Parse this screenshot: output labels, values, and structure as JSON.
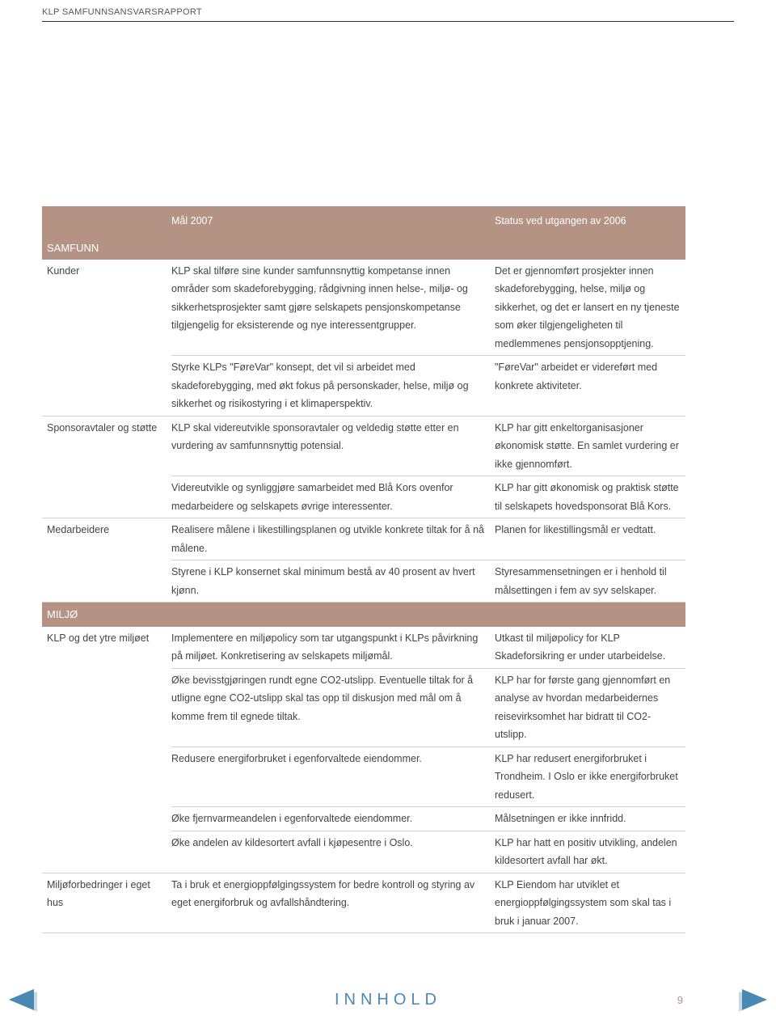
{
  "header": "KLP SAMFUNNSANSVARSRAPPORT",
  "table": {
    "col_headers": {
      "c1": "",
      "c2": "Mål 2007",
      "c3": "Status ved utgangen av 2006"
    },
    "sections": [
      {
        "title": "SAMFUNN",
        "rows": [
          {
            "label": "Kunder",
            "items": [
              {
                "maal": "KLP skal tilføre sine kunder samfunnsnyttig kompetanse innen områder som skadeforebygging, rådgivning innen helse-, miljø- og sikkerhetsprosjekter samt gjøre selskapets pensjonskompetanse tilgjengelig for eksisterende og nye interessentgrupper.",
                "status": "Det er gjennomført prosjekter innen skadeforebygging, helse, miljø og sikkerhet, og det er lansert en ny tjeneste som øker tilgjengeligheten til medlemmenes pensjonsopptjening."
              },
              {
                "maal": "Styrke KLPs \"FøreVar\" konsept, det vil si arbeidet med skadeforebygging, med økt fokus på personskader, helse, miljø og sikkerhet og risikostyring i et klimaperspektiv.",
                "status": "\"FøreVar\" arbeidet er videreført med konkrete aktiviteter."
              }
            ]
          },
          {
            "label": "Sponsoravtaler og støtte",
            "items": [
              {
                "maal": "KLP skal videreutvikle sponsoravtaler og veldedig støtte etter en vurdering av samfunnsnyttig potensial.",
                "status": "KLP har gitt enkeltorganisasjoner økonomisk støtte. En samlet vurdering er ikke gjennomført."
              },
              {
                "maal": "Videreutvikle og synliggjøre samarbeidet med Blå Kors ovenfor medarbeidere og selskapets øvrige interessenter.",
                "status": "KLP har gitt økonomisk og praktisk støtte til selskapets hovedsponsorat Blå Kors."
              }
            ]
          },
          {
            "label": "Medarbeidere",
            "items": [
              {
                "maal": "Realisere målene i likestillingsplanen og utvikle konkrete tiltak for å nå målene.",
                "status": "Planen for likestillingsmål er vedtatt."
              },
              {
                "maal": "Styrene i KLP konsernet skal minimum bestå av 40 prosent av hvert kjønn.",
                "status": "Styresammensetningen er i henhold til målsettingen i fem av syv selskaper."
              }
            ]
          }
        ]
      },
      {
        "title": "MILJØ",
        "rows": [
          {
            "label": "KLP og det ytre miljøet",
            "items": [
              {
                "maal": "Implementere en miljøpolicy som tar utgangspunkt i KLPs påvirkning på miljøet. Konkretisering av selskapets miljømål.",
                "status": "Utkast til miljøpolicy for KLP Skadeforsikring er under utarbeidelse."
              },
              {
                "maal": "Øke bevisstgjøringen rundt egne CO2-utslipp. Eventuelle tiltak for å utligne egne CO2-utslipp skal tas opp til diskusjon med mål om å komme frem til egnede tiltak.",
                "status": "KLP har for første gang gjennomført en analyse av hvordan medarbeidernes reisevirksomhet har bidratt til CO2-utslipp."
              },
              {
                "maal": "Redusere energiforbruket i egenforvaltede eiendommer.",
                "status": "KLP har redusert energiforbruket i Trondheim. I Oslo er ikke energiforbruket redusert."
              },
              {
                "maal": "Øke fjernvarmeandelen i egenforvaltede eiendommer.",
                "status": "Målsetningen er ikke innfridd."
              },
              {
                "maal": "Øke andelen av kildesortert avfall i kjøpesentre i Oslo.",
                "status": "KLP har hatt en positiv utvikling, andelen kildesortert avfall har økt."
              }
            ]
          },
          {
            "label": "Miljøforbedringer i eget hus",
            "items": [
              {
                "maal": "Ta i bruk et energioppfølgingssystem for bedre kontroll og styring av eget energiforbruk og avfallshåndtering.",
                "status": "KLP Eiendom har utviklet et energioppfølgingssystem som skal tas i bruk i januar 2007."
              }
            ]
          }
        ]
      }
    ]
  },
  "footer": {
    "innhold": "INNHOLD",
    "page": "9"
  },
  "colors": {
    "header_bg": "#b49384",
    "header_text": "#ffffff",
    "body_text": "#444444",
    "divider": "#d8cfc9",
    "innhold_link": "#4b89b5",
    "arrow_fill": "#4b89b5",
    "arrow_shadow": "#9cb8c9"
  }
}
